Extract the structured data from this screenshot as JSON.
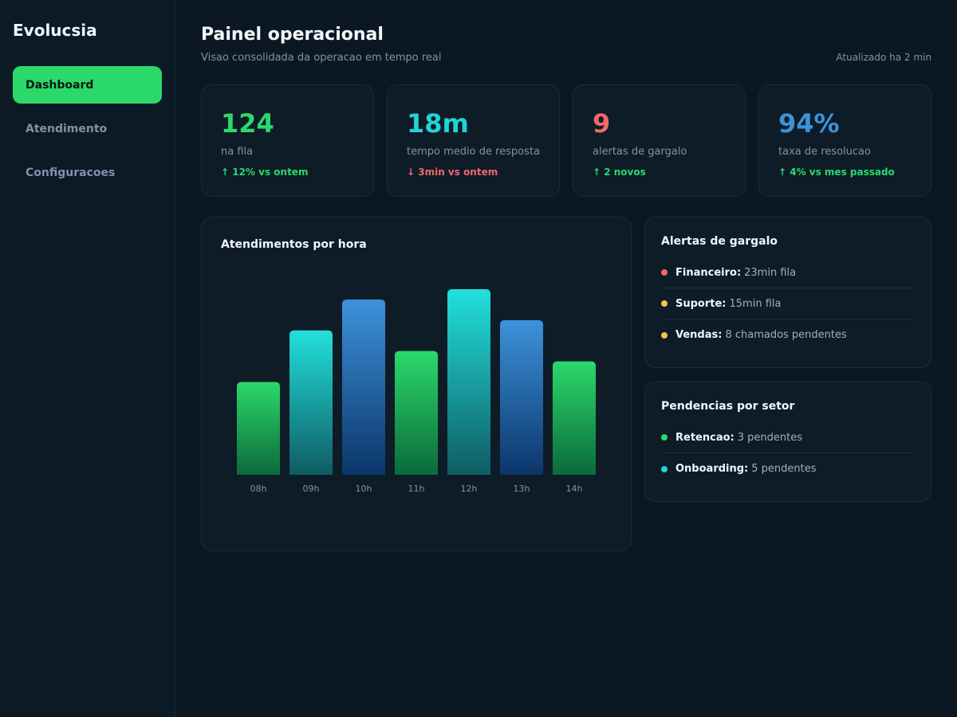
{
  "app": {
    "brand": "Evolucsia"
  },
  "sidebar": {
    "items": [
      {
        "label": "Dashboard",
        "active": true
      },
      {
        "label": "Atendimento",
        "active": false
      },
      {
        "label": "Configuracoes",
        "active": false
      }
    ]
  },
  "header": {
    "title": "Painel operacional",
    "subtitle": "Visao consolidada da operacao em tempo real",
    "updated": "Atualizado ha 2 min"
  },
  "kpis": [
    {
      "value": "124",
      "label": "na fila",
      "delta": "↑ 12% vs ontem",
      "value_color": "#2bd96b",
      "delta_color": "#2bd96b"
    },
    {
      "value": "18m",
      "label": "tempo medio de resposta",
      "delta": "↓ 3min vs ontem",
      "value_color": "#22d3d3",
      "delta_color": "#f06a6a"
    },
    {
      "value": "9",
      "label": "alertas de gargalo",
      "delta": "↑ 2 novos",
      "value_color": "#f06a6a",
      "delta_color": "#2bd96b"
    },
    {
      "value": "94%",
      "label": "taxa de resolucao",
      "delta": "↑ 4% vs mes passado",
      "value_color": "#3d93db",
      "delta_color": "#2bd96b"
    }
  ],
  "chart": {
    "title": "Atendimentos por hora"
  },
  "chart_data": {
    "type": "bar",
    "title": "Atendimentos por hora",
    "xlabel": "",
    "ylabel": "",
    "categories": [
      "08h",
      "09h",
      "10h",
      "11h",
      "12h",
      "13h",
      "14h"
    ],
    "values": [
      45,
      70,
      85,
      60,
      90,
      75,
      55
    ],
    "ylim": [
      0,
      90
    ],
    "grid": false,
    "bar_colors": [
      "green",
      "teal",
      "blue",
      "green",
      "teal",
      "blue",
      "green"
    ]
  },
  "alerts": {
    "title": "Alertas de gargalo",
    "items": [
      {
        "name": "Financeiro:",
        "detail": "23min fila",
        "color": "#f06a6a"
      },
      {
        "name": "Suporte:",
        "detail": "15min fila",
        "color": "#f5c451"
      },
      {
        "name": "Vendas:",
        "detail": "8 chamados pendentes",
        "color": "#f5c451"
      }
    ]
  },
  "pending": {
    "title": "Pendencias por setor",
    "items": [
      {
        "name": "Retencao:",
        "detail": "3 pendentes",
        "color": "#2bd96b"
      },
      {
        "name": "Onboarding:",
        "detail": "5 pendentes",
        "color": "#22d3d3"
      }
    ]
  }
}
